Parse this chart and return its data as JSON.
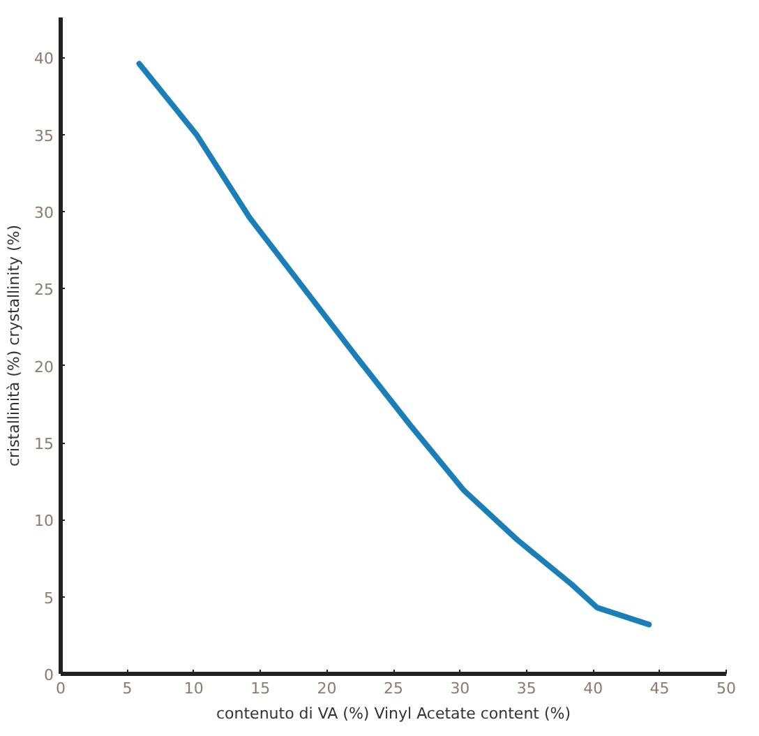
{
  "chart_data": {
    "type": "line",
    "xlabel": "contenuto di VA (%) Vinyl Acetate content (%)",
    "ylabel": "cristallinità (%) crystallinity (%)",
    "x": [
      5.9,
      10.2,
      14.2,
      18.2,
      22.2,
      26.3,
      30.3,
      34.3,
      38.4,
      40.3,
      44.2
    ],
    "series": [
      {
        "color": "#1a7fb8",
        "values": [
          39.6,
          35.0,
          29.6,
          25.1,
          20.6,
          16.1,
          11.9,
          8.7,
          5.8,
          4.3,
          3.2
        ]
      }
    ],
    "xlim": [
      0,
      50
    ],
    "ylim": [
      0,
      42.6
    ],
    "xticks": [
      0,
      5,
      10,
      15,
      20,
      25,
      30,
      35,
      40,
      45,
      50
    ],
    "yticks": [
      0,
      5,
      10,
      15,
      20,
      25,
      30,
      35,
      40
    ],
    "line_style": "solid"
  }
}
